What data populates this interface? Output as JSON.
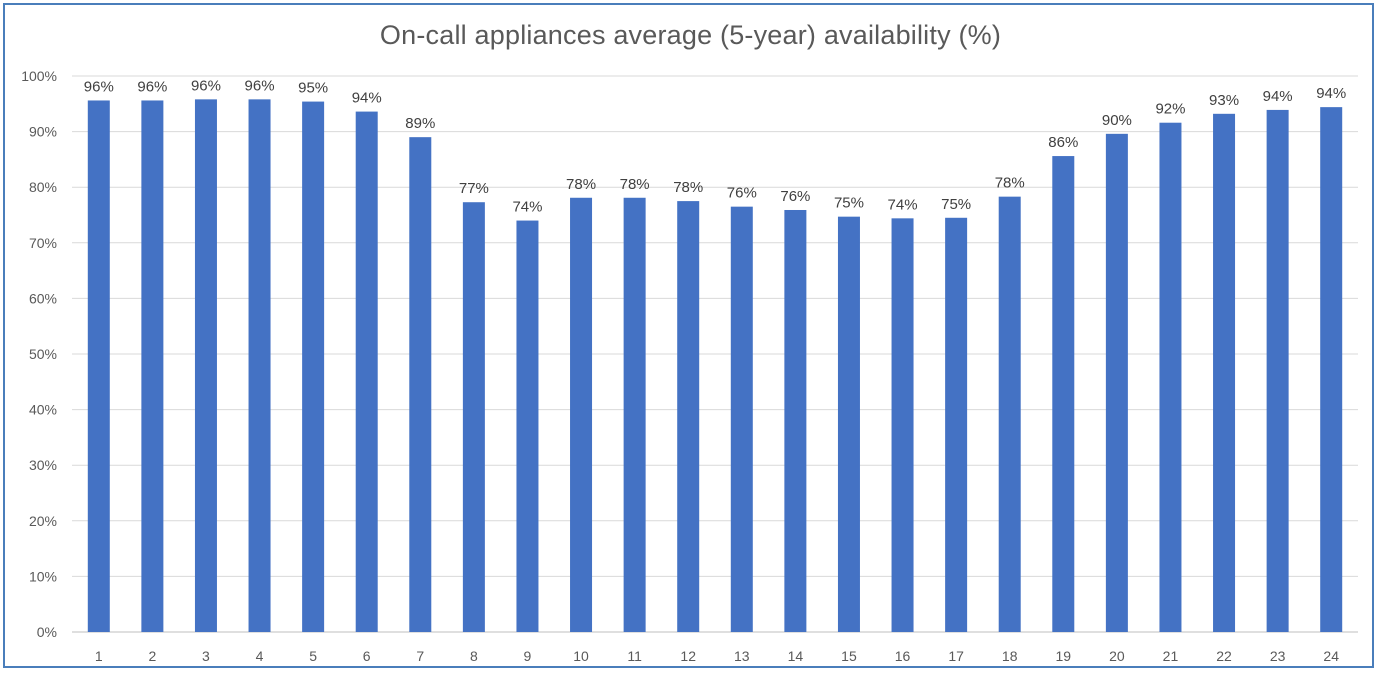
{
  "chart_data": {
    "type": "bar",
    "title": "On-call appliances average (5-year) availability (%)",
    "xlabel": "",
    "ylabel": "",
    "ylim": [
      0,
      100
    ],
    "y_ticks": [
      "0%",
      "10%",
      "20%",
      "30%",
      "40%",
      "50%",
      "60%",
      "70%",
      "80%",
      "90%",
      "100%"
    ],
    "y_tick_values": [
      0,
      10,
      20,
      30,
      40,
      50,
      60,
      70,
      80,
      90,
      100
    ],
    "categories": [
      "1",
      "2",
      "3",
      "4",
      "5",
      "6",
      "7",
      "8",
      "9",
      "10",
      "11",
      "12",
      "13",
      "14",
      "15",
      "16",
      "17",
      "18",
      "19",
      "20",
      "21",
      "22",
      "23",
      "24"
    ],
    "values": [
      95.6,
      95.6,
      95.8,
      95.8,
      95.4,
      93.6,
      89.0,
      77.3,
      74.0,
      78.1,
      78.1,
      77.5,
      76.5,
      75.9,
      74.7,
      74.4,
      74.5,
      78.3,
      85.6,
      89.6,
      91.6,
      93.2,
      93.9,
      94.4
    ],
    "data_labels": [
      "96%",
      "96%",
      "96%",
      "96%",
      "95%",
      "94%",
      "89%",
      "77%",
      "74%",
      "78%",
      "78%",
      "78%",
      "76%",
      "76%",
      "75%",
      "74%",
      "75%",
      "78%",
      "86%",
      "90%",
      "92%",
      "93%",
      "94%",
      "94%"
    ],
    "grid": true,
    "legend": "none",
    "colors": {
      "bar": "#4472c4",
      "grid": "#d9d9d9",
      "axis": "#bfbfbf",
      "border": "#4a7ebb",
      "text": "#595959"
    }
  }
}
